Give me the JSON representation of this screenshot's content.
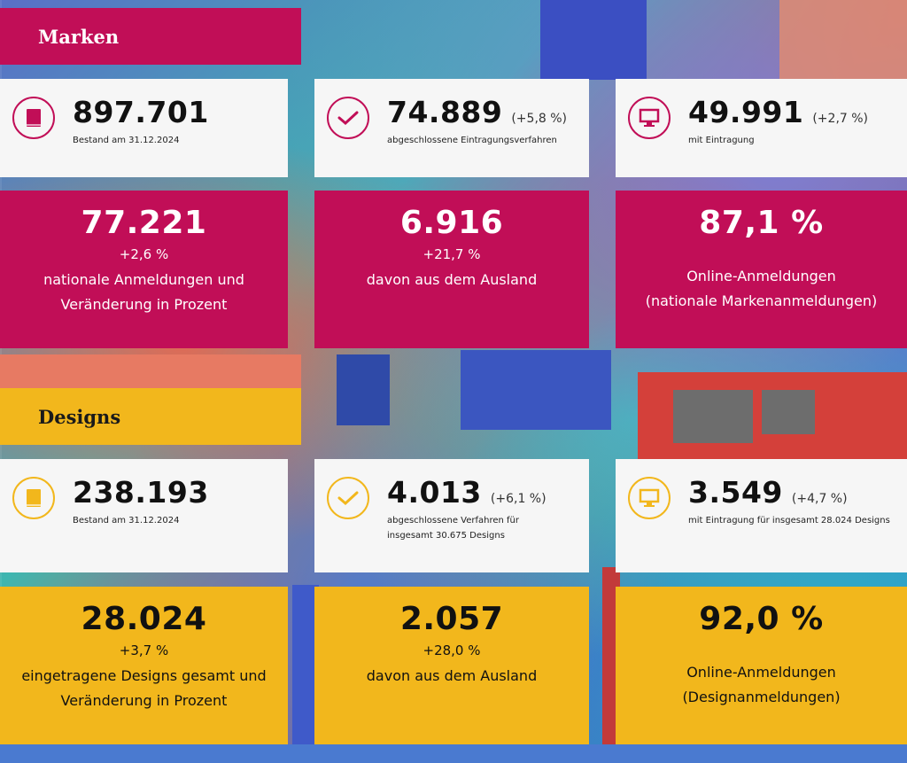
{
  "marken": {
    "heading": "Marken",
    "stats": [
      {
        "icon": "book-icon",
        "value": "897.701",
        "delta": "",
        "label": "Bestand am 31.12.2024"
      },
      {
        "icon": "checkmark-icon",
        "value": "74.889",
        "delta": "(+5,8 %)",
        "label": "abgeschlossene Eintragungsverfahren"
      },
      {
        "icon": "monitor-icon",
        "value": "49.991",
        "delta": "(+2,7 %)",
        "label": "mit Eintragung"
      }
    ],
    "highlights": [
      {
        "value": "77.221",
        "delta": "+2,6 %",
        "line1": "nationale Anmeldungen und",
        "line2": "Veränderung in Prozent"
      },
      {
        "value": "6.916",
        "delta": "+21,7 %",
        "line1": "davon aus dem Ausland",
        "line2": ""
      },
      {
        "value": "87,1 %",
        "delta": "",
        "line1": "Online-Anmeldungen",
        "line2": "(nationale Markenanmeldungen)"
      }
    ]
  },
  "designs": {
    "heading": "Designs",
    "stats": [
      {
        "icon": "book-icon",
        "value": "238.193",
        "delta": "",
        "label": "Bestand am 31.12.2024"
      },
      {
        "icon": "checkmark-icon",
        "value": "4.013",
        "delta": "(+6,1 %)",
        "label": "abgeschlossene Verfahren für insgesamt 30.675 Designs"
      },
      {
        "icon": "monitor-icon",
        "value": "3.549",
        "delta": "(+4,7 %)",
        "label": "mit Eintragung für insgesamt 28.024 Designs"
      }
    ],
    "highlights": [
      {
        "value": "28.024",
        "delta": "+3,7 %",
        "line1": "eingetragene Designs gesamt und",
        "line2": "Veränderung in Prozent"
      },
      {
        "value": "2.057",
        "delta": "+28,0 %",
        "line1": "davon aus dem Ausland",
        "line2": ""
      },
      {
        "value": "92,0 %",
        "delta": "",
        "line1": "Online-Anmeldungen",
        "line2": "(Designanmeldungen)"
      }
    ]
  },
  "colors": {
    "marken": "#c10e57",
    "designs": "#f2b71c"
  }
}
